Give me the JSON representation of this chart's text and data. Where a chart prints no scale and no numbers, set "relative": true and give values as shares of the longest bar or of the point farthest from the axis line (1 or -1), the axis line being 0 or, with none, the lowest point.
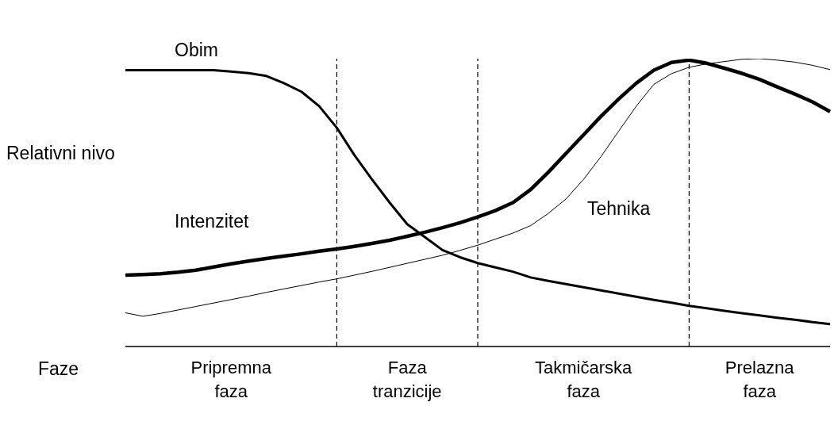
{
  "chart_data": {
    "type": "line",
    "relative": true,
    "ylabel": "Relativni nivo",
    "xlabel": "Faze",
    "categories": [
      null,
      null,
      null,
      null,
      null,
      null,
      "Pripremna faza",
      null,
      null,
      null,
      null,
      null,
      null,
      null,
      null,
      null,
      "Faza tranzicije",
      null,
      null,
      null,
      null,
      null,
      null,
      null,
      null,
      null,
      "Takmičarska faza",
      null,
      null,
      null,
      null,
      null,
      null,
      null,
      null,
      null,
      "Prelazna faza",
      null,
      null,
      null,
      null
    ],
    "grid": "x",
    "legend": false,
    "marker": "none",
    "line_style": "solid",
    "series": [
      {
        "name": "Obim",
        "color": "#000000",
        "values": [
          0.96,
          0.96,
          0.96,
          0.96,
          0.96,
          0.96,
          0.955,
          0.95,
          0.94,
          0.915,
          0.885,
          0.835,
          0.76,
          0.665,
          0.58,
          0.5,
          0.425,
          0.38,
          0.335,
          0.31,
          0.29,
          0.275,
          0.26,
          0.24,
          0.228,
          0.217,
          0.206,
          0.195,
          0.184,
          0.173,
          0.162,
          0.152,
          0.141,
          0.133,
          0.124,
          0.116,
          0.108,
          0.1,
          0.093,
          0.085,
          0.078
        ]
      },
      {
        "name": "Intenzitet",
        "color": "#000000",
        "values": [
          0.248,
          0.25,
          0.253,
          0.258,
          0.265,
          0.276,
          0.287,
          0.297,
          0.306,
          0.314,
          0.322,
          0.331,
          0.339,
          0.348,
          0.358,
          0.369,
          0.383,
          0.397,
          0.413,
          0.43,
          0.45,
          0.472,
          0.5,
          0.545,
          0.605,
          0.67,
          0.735,
          0.8,
          0.86,
          0.915,
          0.96,
          0.987,
          0.995,
          0.984,
          0.967,
          0.949,
          0.928,
          0.902,
          0.877,
          0.85,
          0.816
        ]
      },
      {
        "name": "Tehnika",
        "color": "#000000",
        "values": [
          0.117,
          0.105,
          0.115,
          0.127,
          0.139,
          0.151,
          0.163,
          0.175,
          0.188,
          0.2,
          0.212,
          0.224,
          0.235,
          0.248,
          0.261,
          0.275,
          0.289,
          0.303,
          0.317,
          0.334,
          0.352,
          0.373,
          0.394,
          0.42,
          0.462,
          0.512,
          0.58,
          0.66,
          0.748,
          0.835,
          0.911,
          0.948,
          0.97,
          0.982,
          0.99,
          0.998,
          1,
          0.995,
          0.988,
          0.977,
          0.962
        ]
      }
    ]
  }
}
